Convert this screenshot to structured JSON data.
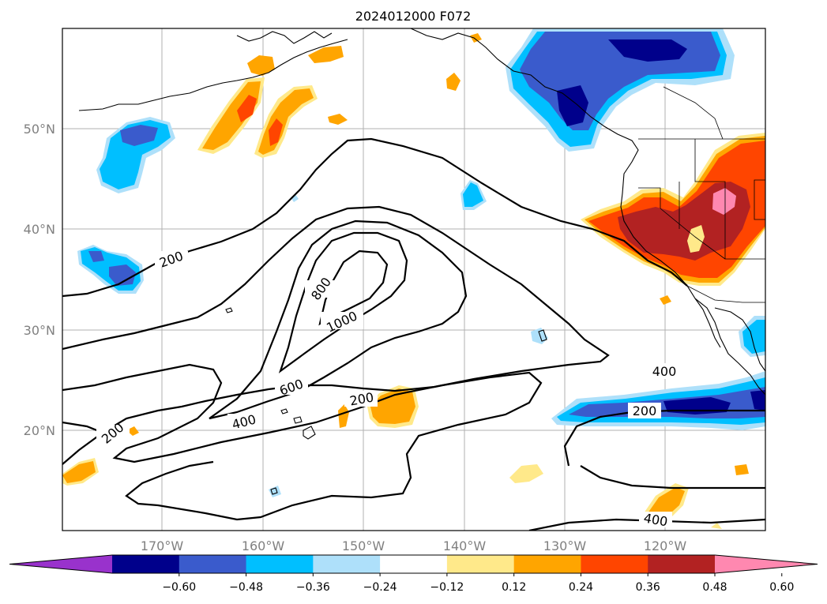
{
  "title": "2024012000 F072",
  "lat_labels": [
    "50°N",
    "40°N",
    "30°N",
    "20°N"
  ],
  "lon_labels": [
    "170°W",
    "160°W",
    "150°W",
    "140°W",
    "130°W",
    "120°W"
  ],
  "contour_labels": [
    "200",
    "200",
    "200",
    "200",
    "400",
    "400",
    "400",
    "600",
    "800",
    "1000"
  ],
  "colorbar": {
    "tick_labels": [
      "−0.60",
      "−0.48",
      "−0.36",
      "−0.24",
      "−0.12",
      "0.12",
      "0.24",
      "0.36",
      "0.48",
      "0.60"
    ],
    "colors": [
      "#9932cc",
      "#00008b",
      "#3a5bcc",
      "#00bfff",
      "#aee0fa",
      "#ffffff",
      "#ffe98a",
      "#ffa500",
      "#ff4500",
      "#b22222",
      "#ff88b0"
    ]
  }
}
